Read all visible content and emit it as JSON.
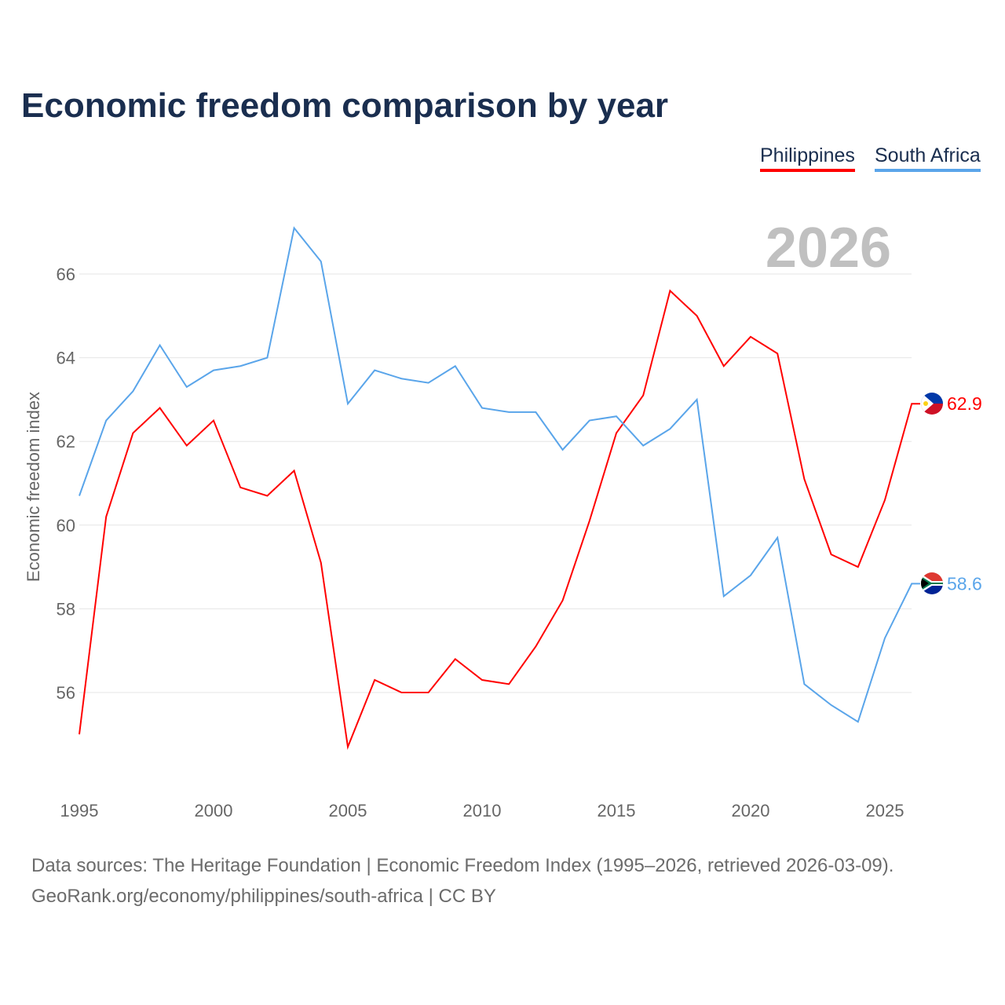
{
  "title": "Economic freedom comparison by year",
  "year_watermark": "2026",
  "footer": {
    "line1": "Data sources: The Heritage Foundation | Economic Freedom Index (1995–2026, retrieved 2026-03-09).",
    "line2": "GeoRank.org/economy/philippines/south-africa | CC BY"
  },
  "chart_data": {
    "type": "line",
    "title": "Economic freedom comparison by year",
    "ylabel": "Economic freedom index",
    "xlabel": "",
    "ylim": [
      53.8,
      67.5
    ],
    "xlim": [
      1995,
      2026
    ],
    "yticks": [
      56,
      58,
      60,
      62,
      64,
      66
    ],
    "xticks": [
      1995,
      2000,
      2005,
      2010,
      2015,
      2020,
      2025
    ],
    "grid": true,
    "legend": "top-right",
    "x": [
      1995,
      1996,
      1997,
      1998,
      1999,
      2000,
      2001,
      2002,
      2003,
      2004,
      2005,
      2006,
      2007,
      2008,
      2009,
      2010,
      2011,
      2012,
      2013,
      2014,
      2015,
      2016,
      2017,
      2018,
      2019,
      2020,
      2021,
      2022,
      2023,
      2024,
      2025,
      2026
    ],
    "series": [
      {
        "name": "Philippines",
        "color": "#ff0000",
        "end_label": "62.9",
        "flag": "philippines-flag-icon",
        "values": [
          55.0,
          60.2,
          62.2,
          62.8,
          61.9,
          62.5,
          60.9,
          60.7,
          61.3,
          59.1,
          54.7,
          56.3,
          56.0,
          56.0,
          56.8,
          56.3,
          56.2,
          57.1,
          58.2,
          60.1,
          62.2,
          63.1,
          65.6,
          65.0,
          63.8,
          64.5,
          64.1,
          61.1,
          59.3,
          59.0,
          60.6,
          62.9
        ]
      },
      {
        "name": "South Africa",
        "color": "#5aa5ea",
        "end_label": "58.6",
        "flag": "south-africa-flag-icon",
        "values": [
          60.7,
          62.5,
          63.2,
          64.3,
          63.3,
          63.7,
          63.8,
          64.0,
          67.1,
          66.3,
          62.9,
          63.7,
          63.5,
          63.4,
          63.8,
          62.8,
          62.7,
          62.7,
          61.8,
          62.5,
          62.6,
          61.9,
          62.3,
          63.0,
          58.3,
          58.8,
          59.7,
          56.2,
          55.7,
          55.3,
          57.3,
          58.6
        ]
      }
    ]
  }
}
